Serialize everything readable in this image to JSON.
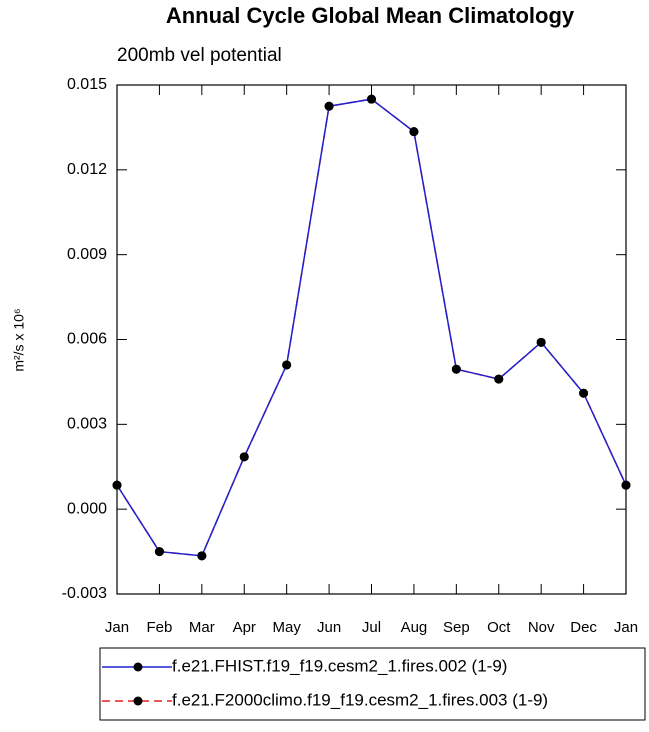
{
  "chart_data": {
    "type": "line",
    "title": "Annual Cycle Global Mean Climatology",
    "subtitle": "200mb vel potential",
    "y_label": "m²/s x 10⁶",
    "categories": [
      "Jan",
      "Feb",
      "Mar",
      "Apr",
      "May",
      "Jun",
      "Jul",
      "Aug",
      "Sep",
      "Oct",
      "Nov",
      "Dec",
      "Jan"
    ],
    "series": [
      {
        "name": "f.e21.F2000climo.f19_f19.cesm2_1.fires.003 (1-9)",
        "color": "#e02020",
        "dashed": true,
        "values": [
          0.00085,
          -0.0015,
          -0.00165,
          0.00185,
          0.0051,
          0.01425,
          0.0145,
          0.01335,
          0.00495,
          0.0046,
          0.0059,
          0.0041,
          0.00085
        ]
      },
      {
        "name": "f.e21.FHIST.f19_f19.cesm2_1.fires.002 (1-9)",
        "color": "#2020d0",
        "dashed": false,
        "values": [
          0.00085,
          -0.0015,
          -0.00165,
          0.00185,
          0.0051,
          0.01425,
          0.0145,
          0.01335,
          0.00495,
          0.0046,
          0.0059,
          0.0041,
          0.00085
        ]
      }
    ],
    "ylim": [
      -0.003,
      0.015
    ],
    "yticks": [
      -0.003,
      {
        "value": 0,
        "label": "0.000"
      },
      0.003,
      0.006,
      0.009,
      0.012,
      0.015
    ]
  }
}
